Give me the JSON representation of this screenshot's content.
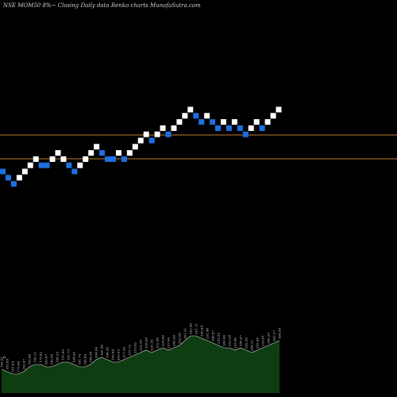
{
  "chart_data": {
    "type": "renko",
    "title": "NSE MOM50  8%~  Closing Daily data  Renko  charts MunafaSutra.com",
    "colors": {
      "background": "#000000",
      "up_brick": "#ffffff",
      "down_brick": "#1e6fe0",
      "reference_line": "#c07a2a",
      "volume_fill": "#0f3d12",
      "volume_line": "#d8d8d8"
    },
    "reference_lines": [
      "upper",
      "lower"
    ],
    "bricks": [
      {
        "dir": "down",
        "level": 10
      },
      {
        "dir": "down",
        "level": 9
      },
      {
        "dir": "down",
        "level": 8
      },
      {
        "dir": "up",
        "level": 9
      },
      {
        "dir": "up",
        "level": 10
      },
      {
        "dir": "up",
        "level": 11
      },
      {
        "dir": "up",
        "level": 12
      },
      {
        "dir": "down",
        "level": 11
      },
      {
        "dir": "down",
        "level": 11
      },
      {
        "dir": "up",
        "level": 12
      },
      {
        "dir": "up",
        "level": 13
      },
      {
        "dir": "up",
        "level": 12
      },
      {
        "dir": "down",
        "level": 11
      },
      {
        "dir": "down",
        "level": 10
      },
      {
        "dir": "up",
        "level": 11
      },
      {
        "dir": "up",
        "level": 12
      },
      {
        "dir": "up",
        "level": 13
      },
      {
        "dir": "up",
        "level": 14
      },
      {
        "dir": "down",
        "level": 13
      },
      {
        "dir": "down",
        "level": 12
      },
      {
        "dir": "down",
        "level": 12
      },
      {
        "dir": "up",
        "level": 13
      },
      {
        "dir": "down",
        "level": 12
      },
      {
        "dir": "up",
        "level": 13
      },
      {
        "dir": "up",
        "level": 14
      },
      {
        "dir": "up",
        "level": 15
      },
      {
        "dir": "up",
        "level": 16
      },
      {
        "dir": "down",
        "level": 15
      },
      {
        "dir": "up",
        "level": 16
      },
      {
        "dir": "up",
        "level": 17
      },
      {
        "dir": "down",
        "level": 16
      },
      {
        "dir": "up",
        "level": 17
      },
      {
        "dir": "up",
        "level": 18
      },
      {
        "dir": "up",
        "level": 19
      },
      {
        "dir": "up",
        "level": 20
      },
      {
        "dir": "down",
        "level": 19
      },
      {
        "dir": "down",
        "level": 18
      },
      {
        "dir": "up",
        "level": 19
      },
      {
        "dir": "down",
        "level": 18
      },
      {
        "dir": "down",
        "level": 17
      },
      {
        "dir": "up",
        "level": 18
      },
      {
        "dir": "down",
        "level": 17
      },
      {
        "dir": "up",
        "level": 18
      },
      {
        "dir": "down",
        "level": 17
      },
      {
        "dir": "down",
        "level": 16
      },
      {
        "dir": "up",
        "level": 17
      },
      {
        "dir": "up",
        "level": 18
      },
      {
        "dir": "down",
        "level": 17
      },
      {
        "dir": "up",
        "level": 18
      },
      {
        "dir": "up",
        "level": 19
      },
      {
        "dir": "up",
        "level": 20
      }
    ],
    "volume_zero_label": "0",
    "volume": [
      10,
      9,
      8,
      8,
      9,
      11,
      12,
      12,
      11,
      11,
      12,
      13,
      13,
      12,
      11,
      11,
      12,
      14,
      15,
      14,
      13,
      13,
      14,
      15,
      16,
      17,
      18,
      17,
      18,
      19,
      18,
      19,
      20,
      22,
      24,
      24,
      23,
      22,
      21,
      20,
      19,
      19,
      18,
      19,
      18,
      17,
      18,
      19,
      20,
      21,
      22
    ],
    "volume_labels": [
      "186.61",
      "185.89",
      "181.85",
      "175.98",
      "183.97",
      "192.88",
      "186.11",
      "179.82",
      "183.07",
      "180.54",
      "188.25",
      "191.60",
      "183.73",
      "184.60",
      "191.79",
      "190.89",
      "199.54",
      "204.06",
      "200.49",
      "196.30",
      "193.94",
      "203.05",
      "211.58",
      "210.72",
      "218.62",
      "222.38",
      "228.60",
      "229.14",
      "232.90",
      "239.86",
      "237.06",
      "245.96",
      "252.60",
      "261.31",
      "263.90",
      "261.11",
      "258.84",
      "251.44",
      "248.87",
      "252.92",
      "246.86",
      "253.24",
      "255.40",
      "248.67",
      "242.50",
      "249.31",
      "252.80",
      "259.01",
      "260.20",
      "262.37",
      "264.89"
    ]
  }
}
